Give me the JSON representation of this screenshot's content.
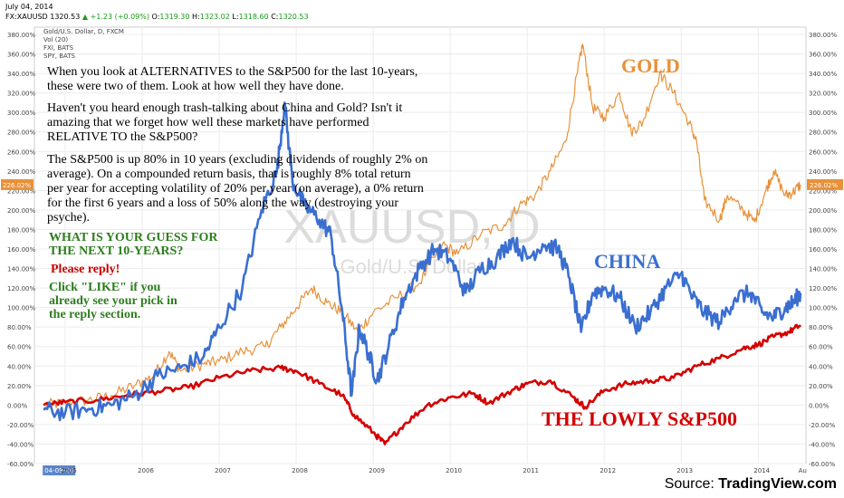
{
  "header": {
    "date": "July 04, 2014",
    "symbol": "FX:XAUUSD",
    "last": "1320.53",
    "change": "▲ +1.23 (+0.09%)",
    "o_label": "O:",
    "o_value": "1319.30",
    "h_label": "H:",
    "h_value": "1323.02",
    "l_label": "L:",
    "l_value": "1318.60",
    "c_label": "C:",
    "c_value": "1320.53"
  },
  "overlays": [
    "Gold/U.S. Dollar, D, FXCM",
    "Vol (20)",
    "FXI, BATS",
    "SPY, BATS"
  ],
  "watermark": {
    "main": "XAUUSD, D",
    "sub": "Gold/U.S. Dollar"
  },
  "annotations": {
    "intro": [
      "When you look at ALTERNATIVES to the S&P500 for the last 10-years,",
      "these were two of them.  Look at how well they have done."
    ],
    "trash": [
      "Haven't you heard enough trash-talking about China and Gold?  Isn't it",
      "amazing that we forget how well these markets have performed",
      "RELATIVE TO the S&P500?"
    ],
    "sp": [
      "The S&P500 is up 80% in 10 years (excluding dividends of roughly 2% on",
      "average).  On a compounded return basis, that is roughly 8% total return",
      "per year for accepting volatility of 20% per year (on average), a 0% return",
      "for the first 6 years and a loss of 50% along the way (destroying your",
      "psyche)."
    ],
    "guess": [
      "WHAT IS YOUR GUESS FOR",
      "THE NEXT 10-YEARS?"
    ],
    "reply": "Please reply!",
    "like": [
      "Click \"LIKE\" if you",
      "already see your pick in",
      "the reply section."
    ],
    "gold": "GOLD",
    "china": "CHINA",
    "sp500": "THE LOWLY S&P500"
  },
  "source": {
    "prefix": "Source: ",
    "name": "TradingView.com"
  },
  "colors": {
    "gold": "#e8913a",
    "china": "#3a6fd1",
    "sp500": "#d40000",
    "grid": "#ececec",
    "text_green": "#2e7d1e",
    "reply_red": "#cc0000",
    "price_badge": "#e8913a"
  },
  "chart_data": {
    "type": "line",
    "xlabel": "",
    "ylabel": "",
    "ylim": [
      -60,
      380
    ],
    "y_ticks": [
      "380.00%",
      "360.00%",
      "340.00%",
      "320.00%",
      "300.00%",
      "280.00%",
      "260.00%",
      "240.00%",
      "220.00%",
      "200.00%",
      "180.00%",
      "160.00%",
      "140.00%",
      "120.00%",
      "100.00%",
      "80.00%",
      "60.00%",
      "40.00%",
      "20.00%",
      "0.00%",
      "-20.00%",
      "-40.00%",
      "-60.00%"
    ],
    "y_tick_values": [
      380,
      360,
      340,
      320,
      300,
      280,
      260,
      240,
      220,
      200,
      180,
      160,
      140,
      120,
      100,
      80,
      60,
      40,
      20,
      0,
      -20,
      -40,
      -60
    ],
    "x_ticks": [
      {
        "label": "04-09-20",
        "t": 2004.72
      },
      {
        "label": "2005",
        "t": 2005.0
      },
      {
        "label": "2006",
        "t": 2006.0
      },
      {
        "label": "2007",
        "t": 2007.0
      },
      {
        "label": "2008",
        "t": 2008.0
      },
      {
        "label": "2009",
        "t": 2009.0
      },
      {
        "label": "2010",
        "t": 2010.0
      },
      {
        "label": "2011",
        "t": 2011.0
      },
      {
        "label": "2012",
        "t": 2012.0
      },
      {
        "label": "2013",
        "t": 2013.0
      },
      {
        "label": "2014",
        "t": 2014.0
      },
      {
        "label": "Au",
        "t": 2014.58
      }
    ],
    "last_value_label": "226.02%",
    "last_value": 226.02,
    "series": [
      {
        "key": "gold",
        "points": [
          [
            2004.72,
            0
          ],
          [
            2005.0,
            2
          ],
          [
            2005.3,
            5
          ],
          [
            2005.6,
            10
          ],
          [
            2005.9,
            20
          ],
          [
            2006.15,
            30
          ],
          [
            2006.35,
            55
          ],
          [
            2006.5,
            35
          ],
          [
            2006.8,
            42
          ],
          [
            2007.0,
            45
          ],
          [
            2007.3,
            55
          ],
          [
            2007.6,
            60
          ],
          [
            2007.8,
            80
          ],
          [
            2008.0,
            100
          ],
          [
            2008.2,
            120
          ],
          [
            2008.4,
            105
          ],
          [
            2008.6,
            95
          ],
          [
            2008.8,
            75
          ],
          [
            2009.0,
            95
          ],
          [
            2009.3,
            110
          ],
          [
            2009.6,
            125
          ],
          [
            2009.9,
            165
          ],
          [
            2010.1,
            155
          ],
          [
            2010.4,
            175
          ],
          [
            2010.7,
            185
          ],
          [
            2010.9,
            205
          ],
          [
            2011.1,
            215
          ],
          [
            2011.3,
            240
          ],
          [
            2011.5,
            270
          ],
          [
            2011.65,
            340
          ],
          [
            2011.72,
            370
          ],
          [
            2011.85,
            305
          ],
          [
            2012.0,
            295
          ],
          [
            2012.2,
            320
          ],
          [
            2012.35,
            280
          ],
          [
            2012.5,
            290
          ],
          [
            2012.72,
            340
          ],
          [
            2012.9,
            320
          ],
          [
            2013.1,
            290
          ],
          [
            2013.2,
            270
          ],
          [
            2013.3,
            210
          ],
          [
            2013.5,
            190
          ],
          [
            2013.6,
            215
          ],
          [
            2013.8,
            200
          ],
          [
            2013.95,
            188
          ],
          [
            2014.1,
            220
          ],
          [
            2014.2,
            240
          ],
          [
            2014.35,
            215
          ],
          [
            2014.45,
            218
          ],
          [
            2014.55,
            226
          ]
        ]
      },
      {
        "key": "china",
        "points": [
          [
            2004.72,
            -5
          ],
          [
            2005.0,
            -8
          ],
          [
            2005.3,
            -4
          ],
          [
            2005.6,
            0
          ],
          [
            2005.9,
            10
          ],
          [
            2006.2,
            30
          ],
          [
            2006.5,
            38
          ],
          [
            2006.8,
            50
          ],
          [
            2007.0,
            80
          ],
          [
            2007.3,
            120
          ],
          [
            2007.55,
            200
          ],
          [
            2007.75,
            240
          ],
          [
            2007.85,
            310
          ],
          [
            2007.95,
            230
          ],
          [
            2008.1,
            205
          ],
          [
            2008.3,
            190
          ],
          [
            2008.45,
            175
          ],
          [
            2008.6,
            95
          ],
          [
            2008.72,
            10
          ],
          [
            2008.82,
            80
          ],
          [
            2008.95,
            50
          ],
          [
            2009.05,
            25
          ],
          [
            2009.2,
            60
          ],
          [
            2009.4,
            110
          ],
          [
            2009.6,
            140
          ],
          [
            2009.8,
            160
          ],
          [
            2010.0,
            150
          ],
          [
            2010.2,
            115
          ],
          [
            2010.4,
            140
          ],
          [
            2010.6,
            150
          ],
          [
            2010.8,
            170
          ],
          [
            2011.0,
            150
          ],
          [
            2011.2,
            165
          ],
          [
            2011.4,
            160
          ],
          [
            2011.55,
            130
          ],
          [
            2011.7,
            75
          ],
          [
            2011.85,
            115
          ],
          [
            2012.0,
            120
          ],
          [
            2012.2,
            110
          ],
          [
            2012.4,
            80
          ],
          [
            2012.6,
            95
          ],
          [
            2012.8,
            120
          ],
          [
            2013.0,
            135
          ],
          [
            2013.15,
            110
          ],
          [
            2013.3,
            95
          ],
          [
            2013.5,
            85
          ],
          [
            2013.7,
            110
          ],
          [
            2013.9,
            115
          ],
          [
            2014.05,
            95
          ],
          [
            2014.2,
            90
          ],
          [
            2014.35,
            100
          ],
          [
            2014.45,
            105
          ],
          [
            2014.55,
            115
          ]
        ]
      },
      {
        "key": "sp500",
        "points": [
          [
            2004.72,
            0
          ],
          [
            2005.0,
            3
          ],
          [
            2005.4,
            5
          ],
          [
            2005.8,
            10
          ],
          [
            2006.2,
            14
          ],
          [
            2006.6,
            18
          ],
          [
            2007.0,
            28
          ],
          [
            2007.4,
            35
          ],
          [
            2007.8,
            38
          ],
          [
            2008.0,
            35
          ],
          [
            2008.3,
            22
          ],
          [
            2008.6,
            10
          ],
          [
            2008.75,
            -10
          ],
          [
            2009.0,
            -28
          ],
          [
            2009.15,
            -40
          ],
          [
            2009.4,
            -20
          ],
          [
            2009.7,
            0
          ],
          [
            2010.0,
            8
          ],
          [
            2010.3,
            12
          ],
          [
            2010.5,
            2
          ],
          [
            2010.8,
            15
          ],
          [
            2011.0,
            22
          ],
          [
            2011.3,
            25
          ],
          [
            2011.6,
            8
          ],
          [
            2011.75,
            -2
          ],
          [
            2012.0,
            15
          ],
          [
            2012.3,
            22
          ],
          [
            2012.6,
            25
          ],
          [
            2012.9,
            28
          ],
          [
            2013.2,
            40
          ],
          [
            2013.5,
            48
          ],
          [
            2013.8,
            58
          ],
          [
            2014.0,
            62
          ],
          [
            2014.2,
            70
          ],
          [
            2014.4,
            75
          ],
          [
            2014.55,
            82
          ]
        ]
      }
    ]
  }
}
